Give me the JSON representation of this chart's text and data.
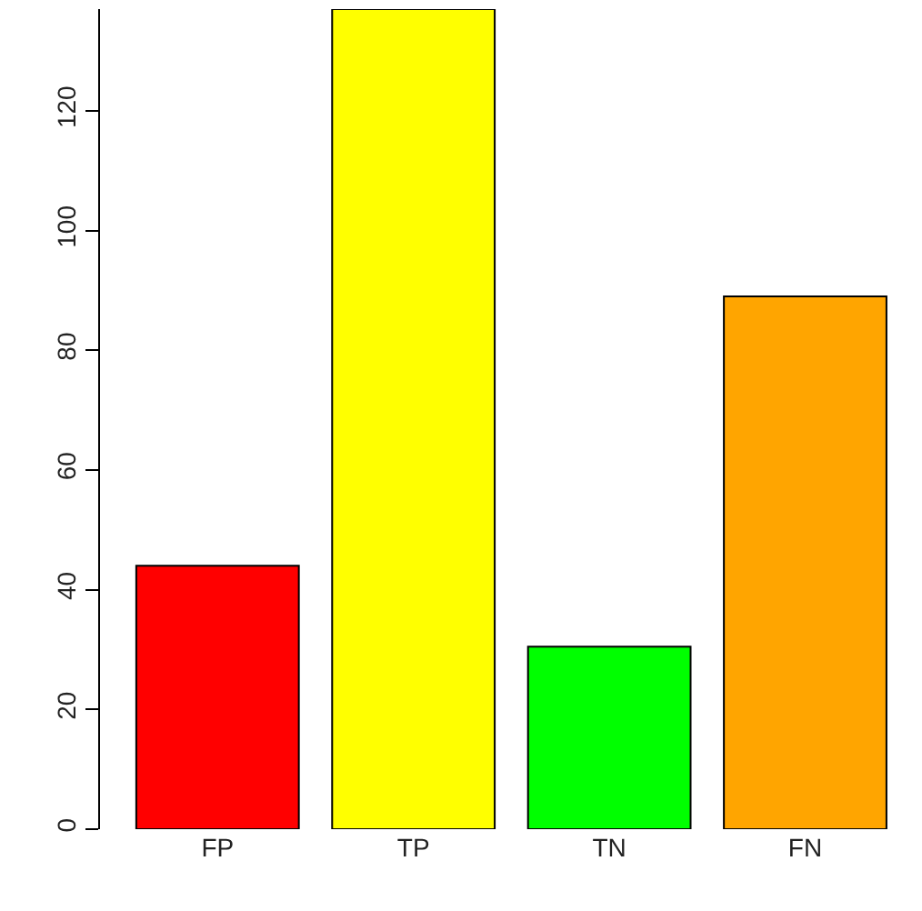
{
  "chart_data": {
    "type": "bar",
    "categories": [
      "FP",
      "TP",
      "TN",
      "FN"
    ],
    "values": [
      44,
      137,
      30.5,
      89
    ],
    "colors": [
      "#ff0000",
      "#ffff00",
      "#00ff00",
      "#ffa500"
    ],
    "ylim": [
      0,
      137
    ],
    "yticks": [
      0,
      20,
      40,
      60,
      80,
      100,
      120
    ],
    "grid": false,
    "legend": false
  }
}
